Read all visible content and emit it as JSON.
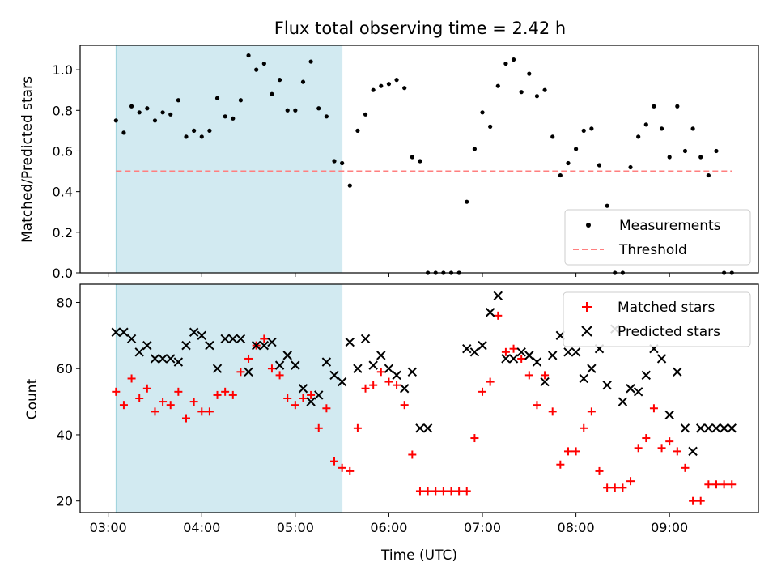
{
  "figure": {
    "title": "Flux total observing time = 2.42 h"
  },
  "chart_data": [
    {
      "type": "scatter",
      "title": "Flux total observing time = 2.42 h",
      "xlabel": "",
      "ylabel": "Matched/Predicted stars",
      "xlim": [
        "02:42",
        "09:57"
      ],
      "ylim": [
        0,
        1.12
      ],
      "x_ticks": [
        "03:00",
        "04:00",
        "05:00",
        "06:00",
        "07:00",
        "08:00",
        "09:00"
      ],
      "y_ticks": [
        "0.0",
        "0.2",
        "0.4",
        "0.6",
        "0.8",
        "1.0"
      ],
      "shaded_interval": [
        "03:05",
        "05:30"
      ],
      "shade_color": "#add8e6",
      "grid": false,
      "legend_position": "lower right",
      "legend": {
        "entries": [
          {
            "label": "Measurements",
            "marker": "dot",
            "color": "#000000"
          },
          {
            "label": "Threshold",
            "marker": "dashed-line",
            "color": "#ff7f7f"
          }
        ]
      },
      "series": [
        {
          "name": "Measurements",
          "marker": "dot",
          "color": "#000000",
          "x": [
            "03:05",
            "03:10",
            "03:15",
            "03:20",
            "03:25",
            "03:30",
            "03:35",
            "03:40",
            "03:45",
            "03:50",
            "03:55",
            "04:00",
            "04:05",
            "04:10",
            "04:15",
            "04:20",
            "04:25",
            "04:30",
            "04:35",
            "04:40",
            "04:45",
            "04:50",
            "04:55",
            "05:00",
            "05:05",
            "05:10",
            "05:15",
            "05:20",
            "05:25",
            "05:30",
            "05:35",
            "05:40",
            "05:45",
            "05:50",
            "05:55",
            "06:00",
            "06:05",
            "06:10",
            "06:15",
            "06:20",
            "06:25",
            "06:30",
            "06:35",
            "06:40",
            "06:45",
            "06:50",
            "06:55",
            "07:00",
            "07:05",
            "07:10",
            "07:15",
            "07:20",
            "07:25",
            "07:30",
            "07:35",
            "07:40",
            "07:45",
            "07:50",
            "07:55",
            "08:00",
            "08:05",
            "08:10",
            "08:15",
            "08:20",
            "08:25",
            "08:30",
            "08:35",
            "08:40",
            "08:45",
            "08:50",
            "08:55",
            "09:00",
            "09:05",
            "09:10",
            "09:15",
            "09:20",
            "09:25",
            "09:30",
            "09:35",
            "09:40"
          ],
          "y": [
            0.75,
            0.69,
            0.82,
            0.79,
            0.81,
            0.75,
            0.79,
            0.78,
            0.85,
            0.67,
            0.7,
            0.67,
            0.7,
            0.86,
            0.77,
            0.76,
            0.85,
            1.07,
            1.0,
            1.03,
            0.88,
            0.95,
            0.8,
            0.8,
            0.94,
            1.04,
            0.81,
            0.77,
            0.55,
            0.54,
            0.43,
            0.7,
            0.78,
            0.9,
            0.92,
            0.93,
            0.95,
            0.91,
            0.57,
            0.55,
            0.0,
            0.0,
            0.0,
            0.0,
            0.0,
            0.35,
            0.61,
            0.79,
            0.72,
            0.92,
            1.03,
            1.05,
            0.89,
            0.98,
            0.87,
            0.9,
            0.67,
            0.48,
            0.54,
            0.61,
            0.7,
            0.71,
            0.53,
            0.33,
            0.0,
            0.0,
            0.52,
            0.67,
            0.73,
            0.82,
            0.71,
            0.57,
            0.82,
            0.6,
            0.71,
            0.57,
            0.48,
            0.6,
            0.0,
            0.0
          ]
        },
        {
          "name": "Threshold",
          "marker": "dashed-line",
          "color": "#ff7f7f",
          "x": [
            "03:05",
            "09:40"
          ],
          "y": [
            0.5,
            0.5
          ]
        }
      ]
    },
    {
      "type": "scatter",
      "title": "",
      "xlabel": "Time (UTC)",
      "ylabel": "Count",
      "xlim": [
        "02:42",
        "09:57"
      ],
      "ylim": [
        16.5,
        85.5
      ],
      "x_ticks": [
        "03:00",
        "04:00",
        "05:00",
        "06:00",
        "07:00",
        "08:00",
        "09:00"
      ],
      "y_ticks": [
        "20",
        "40",
        "60",
        "80"
      ],
      "shaded_interval": [
        "03:05",
        "05:30"
      ],
      "shade_color": "#add8e6",
      "grid": false,
      "legend_position": "upper right",
      "legend": {
        "entries": [
          {
            "label": "Matched stars",
            "marker": "plus",
            "color": "#ff0000"
          },
          {
            "label": "Predicted stars",
            "marker": "x",
            "color": "#000000"
          }
        ]
      },
      "series": [
        {
          "name": "Matched stars",
          "marker": "plus",
          "color": "#ff0000",
          "x": [
            "03:05",
            "03:10",
            "03:15",
            "03:20",
            "03:25",
            "03:30",
            "03:35",
            "03:40",
            "03:45",
            "03:50",
            "03:55",
            "04:00",
            "04:05",
            "04:10",
            "04:15",
            "04:20",
            "04:25",
            "04:30",
            "04:35",
            "04:40",
            "04:45",
            "04:50",
            "04:55",
            "05:00",
            "05:05",
            "05:10",
            "05:15",
            "05:20",
            "05:25",
            "05:30",
            "05:35",
            "05:40",
            "05:45",
            "05:50",
            "05:55",
            "06:00",
            "06:05",
            "06:10",
            "06:15",
            "06:20",
            "06:25",
            "06:30",
            "06:35",
            "06:40",
            "06:45",
            "06:50",
            "06:55",
            "07:00",
            "07:05",
            "07:10",
            "07:15",
            "07:20",
            "07:25",
            "07:30",
            "07:35",
            "07:40",
            "07:45",
            "07:50",
            "07:55",
            "08:00",
            "08:05",
            "08:10",
            "08:15",
            "08:20",
            "08:25",
            "08:30",
            "08:35",
            "08:40",
            "08:45",
            "08:50",
            "08:55",
            "09:00",
            "09:05",
            "09:10",
            "09:15",
            "09:20",
            "09:25",
            "09:30",
            "09:35",
            "09:40"
          ],
          "y": [
            53,
            49,
            57,
            51,
            54,
            47,
            50,
            49,
            53,
            45,
            50,
            47,
            47,
            52,
            53,
            52,
            59,
            63,
            67,
            69,
            60,
            58,
            51,
            49,
            51,
            52,
            42,
            48,
            32,
            30,
            29,
            42,
            54,
            55,
            59,
            56,
            55,
            49,
            34,
            23,
            23,
            23,
            23,
            23,
            23,
            23,
            39,
            53,
            56,
            76,
            65,
            66,
            63,
            58,
            49,
            58,
            47,
            31,
            35,
            35,
            42,
            47,
            29,
            24,
            24,
            24,
            26,
            36,
            39,
            48,
            36,
            38,
            35,
            30,
            20,
            20,
            25,
            25,
            25,
            25
          ]
        },
        {
          "name": "Predicted stars",
          "marker": "x",
          "color": "#000000",
          "x": [
            "03:05",
            "03:10",
            "03:15",
            "03:20",
            "03:25",
            "03:30",
            "03:35",
            "03:40",
            "03:45",
            "03:50",
            "03:55",
            "04:00",
            "04:05",
            "04:10",
            "04:15",
            "04:20",
            "04:25",
            "04:30",
            "04:35",
            "04:40",
            "04:45",
            "04:50",
            "04:55",
            "05:00",
            "05:05",
            "05:10",
            "05:15",
            "05:20",
            "05:25",
            "05:30",
            "05:35",
            "05:40",
            "05:45",
            "05:50",
            "05:55",
            "06:00",
            "06:05",
            "06:10",
            "06:15",
            "06:20",
            "06:25",
            "06:50",
            "06:55",
            "07:00",
            "07:05",
            "07:10",
            "07:15",
            "07:20",
            "07:25",
            "07:30",
            "07:35",
            "07:40",
            "07:45",
            "07:50",
            "07:55",
            "08:00",
            "08:05",
            "08:10",
            "08:15",
            "08:20",
            "08:25",
            "08:30",
            "08:35",
            "08:40",
            "08:45",
            "08:50",
            "08:55",
            "09:00",
            "09:05",
            "09:10",
            "09:15",
            "09:20",
            "09:25",
            "09:30",
            "09:35",
            "09:40"
          ],
          "y": [
            71,
            71,
            69,
            65,
            67,
            63,
            63,
            63,
            62,
            67,
            71,
            70,
            67,
            60,
            69,
            69,
            69,
            59,
            67,
            67,
            68,
            61,
            64,
            61,
            54,
            50,
            52,
            62,
            58,
            56,
            68,
            60,
            69,
            61,
            64,
            60,
            58,
            54,
            59,
            42,
            42,
            66,
            65,
            67,
            77,
            82,
            63,
            63,
            65,
            64,
            62,
            56,
            64,
            70,
            65,
            65,
            57,
            60,
            66,
            55,
            72,
            50,
            54,
            53,
            58,
            66,
            63,
            46,
            59,
            42,
            35,
            42,
            42,
            42,
            42,
            42
          ]
        }
      ]
    }
  ]
}
